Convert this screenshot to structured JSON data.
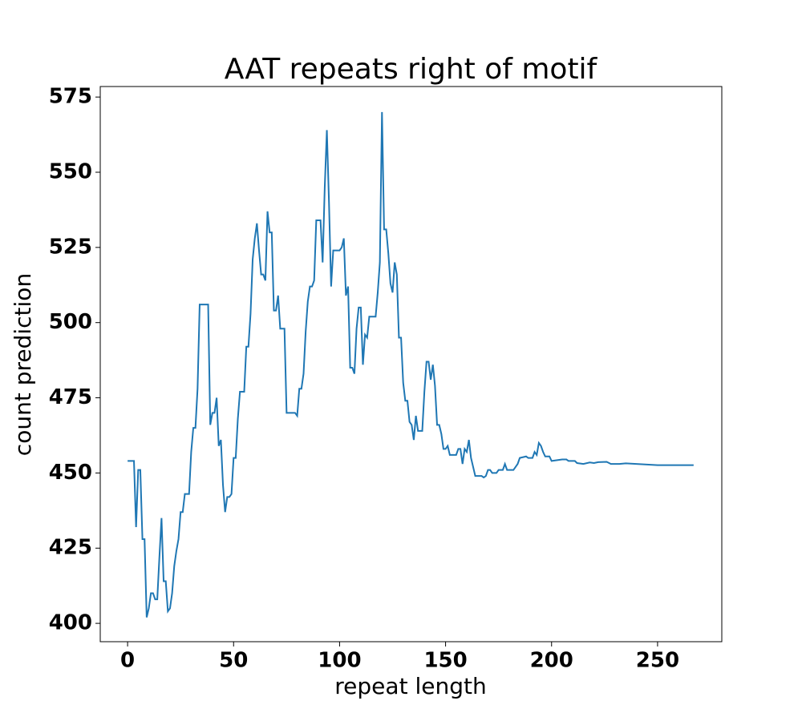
{
  "chart_data": {
    "type": "line",
    "title": "AAT repeats right of motif",
    "x_label": "repeat length",
    "y_label": "count prediction",
    "xlim": [
      -12.9,
      280.3
    ],
    "ylim": [
      393.9,
      578.5
    ],
    "xticks": [
      0,
      50,
      100,
      150,
      200,
      250
    ],
    "yticks": [
      400,
      425,
      450,
      475,
      500,
      525,
      550,
      575
    ],
    "series": [
      {
        "color": "#1f77b4",
        "x": [
          0,
          3,
          4,
          5,
          6,
          7,
          8,
          9,
          10,
          11,
          12,
          13,
          14,
          15,
          16,
          17,
          18,
          19,
          20,
          21,
          22,
          23,
          24,
          25,
          26,
          27,
          29,
          30,
          31,
          32,
          33,
          34,
          38,
          39,
          40,
          41,
          42,
          43,
          44,
          45,
          46,
          47,
          48,
          49,
          50,
          51,
          52,
          53,
          55,
          56,
          57,
          58,
          59,
          60,
          61,
          62,
          63,
          64,
          65,
          66,
          67,
          68,
          69,
          70,
          71,
          72,
          74,
          75,
          79,
          80,
          81,
          82,
          83,
          84,
          85,
          86,
          87,
          88,
          89,
          91,
          92,
          93,
          94,
          95,
          96,
          97,
          100,
          101,
          102,
          103,
          104,
          105,
          106,
          107,
          108,
          109,
          110,
          111,
          112,
          113,
          114,
          117,
          118,
          119,
          120,
          121,
          122,
          123,
          124,
          125,
          126,
          127,
          128,
          129,
          130,
          131,
          132,
          133,
          134,
          135,
          136,
          137,
          139,
          140,
          141,
          142,
          143,
          144,
          145,
          146,
          147,
          148,
          149,
          150,
          151,
          152,
          155,
          156,
          157,
          158,
          159,
          160,
          161,
          162,
          163,
          164,
          167,
          168,
          169,
          170,
          171,
          172,
          174,
          175,
          177,
          178,
          179,
          182,
          183,
          184,
          185,
          188,
          189,
          191,
          192,
          193,
          194,
          195,
          196,
          197,
          199,
          200,
          205,
          207,
          208,
          211,
          212,
          215,
          218,
          220,
          222,
          226,
          228,
          232,
          235,
          240,
          245,
          250,
          267
        ],
        "values": [
          454,
          454,
          432,
          451,
          451,
          428,
          428,
          402,
          405,
          410,
          410,
          408,
          408,
          422,
          435,
          414,
          414,
          404,
          405,
          410,
          419,
          424,
          428,
          437,
          437,
          443,
          443,
          457,
          465,
          465,
          478,
          506,
          506,
          466,
          470,
          470,
          475,
          459,
          461,
          446,
          437,
          442,
          442,
          443,
          455,
          455,
          468,
          477,
          477,
          492,
          492,
          503,
          521,
          528,
          533,
          524,
          516,
          516,
          514,
          537,
          530,
          530,
          504,
          504,
          509,
          498,
          498,
          470,
          470,
          469,
          478,
          478,
          483,
          497,
          507,
          512,
          512,
          514,
          534,
          534,
          520,
          545,
          564,
          540,
          512,
          524,
          524,
          525,
          528,
          509,
          512,
          485,
          485,
          483,
          498,
          505,
          505,
          486,
          496,
          495,
          502,
          502,
          510,
          520,
          570,
          531,
          531,
          523,
          513,
          510,
          520,
          516,
          495,
          495,
          480,
          474,
          474,
          467,
          466,
          461,
          469,
          464,
          464,
          477,
          487,
          487,
          481,
          486,
          479,
          466,
          466,
          463,
          458,
          458,
          459,
          456,
          456,
          458,
          458,
          453,
          458,
          457,
          461,
          455,
          452,
          449,
          449,
          448.5,
          449,
          451,
          451,
          450,
          450,
          451,
          451,
          453,
          451,
          451,
          452,
          453,
          455,
          455.5,
          455,
          455,
          457,
          456,
          460,
          459,
          457,
          455.5,
          455.5,
          454,
          454.5,
          454.5,
          454,
          454,
          453.3,
          453,
          453.5,
          453.3,
          453.6,
          453.7,
          453,
          453,
          453.2,
          453,
          452.8,
          452.6,
          452.6
        ]
      }
    ]
  }
}
